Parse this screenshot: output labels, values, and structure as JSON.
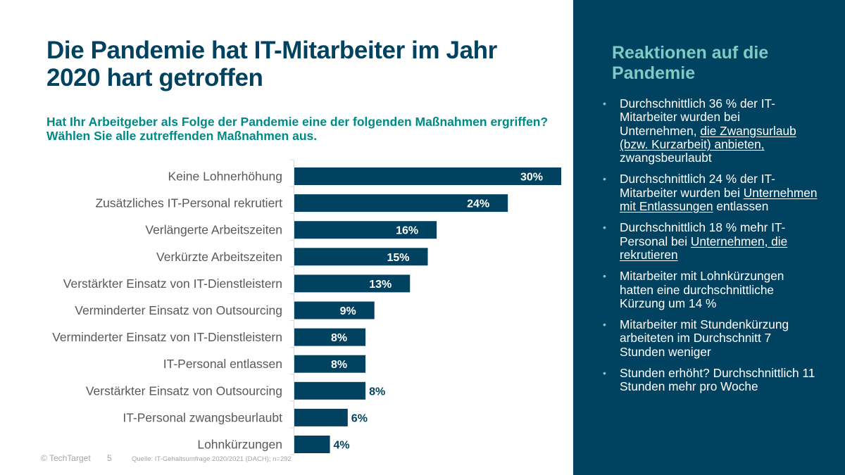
{
  "slide": {
    "title": "Die Pandemie hat IT-Mitarbeiter im Jahr 2020 hart getroffen",
    "subtitle": "Hat Ihr Arbeitgeber als Folge der Pandemie eine der folgenden Maßnahmen ergriffen? Wählen Sie alle zutreffenden Maßnahmen aus."
  },
  "colors": {
    "bar": "#00425f",
    "title": "#00425f",
    "subtitle": "#008a86",
    "panel_bg": "#00425f",
    "panel_title": "#7fcbc4",
    "label_text": "#595959",
    "axis": "#d9d9d9"
  },
  "chart_data": {
    "type": "bar",
    "orientation": "horizontal",
    "title": "",
    "xlabel": "",
    "ylabel": "",
    "categories": [
      "Keine Lohnerhöhung",
      "Zusätzliches IT-Personal rekrutiert",
      "Verlängerte Arbeitszeiten",
      "Verkürzte Arbeitszeiten",
      "Verstärkter Einsatz von IT-Dienstleistern",
      "Verminderter Einsatz von Outsourcing",
      "Verminderter Einsatz von IT-Dienstleistern",
      "IT-Personal entlassen",
      "Verstärkter Einsatz von Outsourcing",
      "IT-Personal zwangsbeurlaubt",
      "Lohnkürzungen"
    ],
    "values": [
      30,
      24,
      16,
      15,
      13,
      9,
      8,
      8,
      8,
      6,
      4
    ],
    "value_labels": [
      "30%",
      "24%",
      "16%",
      "15%",
      "13%",
      "9%",
      "8%",
      "8%",
      "8%",
      "6%",
      "4%"
    ],
    "unit": "%",
    "xlim": [
      0,
      30
    ],
    "grid": false,
    "legend": "none"
  },
  "panel": {
    "title": "Reaktionen auf die Pandemie",
    "bullet_glyph": "•",
    "items": [
      {
        "pre": "Durchschnittlich 36 % der IT-Mitarbeiter wurden bei Unternehmen, ",
        "link": "die Zwangsurlaub (bzw. Kurzarbeit) anbieten, ",
        "post": "zwangsbeurlaubt"
      },
      {
        "pre": "Durchschnittlich 24 % der IT-Mitarbeiter wurden bei ",
        "link": "Unternehmen mit Entlassungen",
        "post": " entlassen"
      },
      {
        "pre": "Durchschnittlich 18 % mehr IT-Personal bei ",
        "link": "Unternehmen, die rekrutieren",
        "post": ""
      },
      {
        "pre": "Mitarbeiter mit Lohnkürzungen hatten eine durchschnittliche Kürzung um 14 %",
        "link": "",
        "post": ""
      },
      {
        "pre": "Mitarbeiter mit Stundenkürzung arbeiteten im Durchschnitt 7 Stunden weniger",
        "link": "",
        "post": ""
      },
      {
        "pre": "Stunden erhöht? Durchschnittlich 11 Stunden mehr pro Woche",
        "link": "",
        "post": ""
      }
    ]
  },
  "footer": {
    "copyright": "© TechTarget",
    "page_number": "5",
    "source": "Quelle:  IT-Gehaltsumfrage 2020/2021 (DACH); n=292"
  }
}
